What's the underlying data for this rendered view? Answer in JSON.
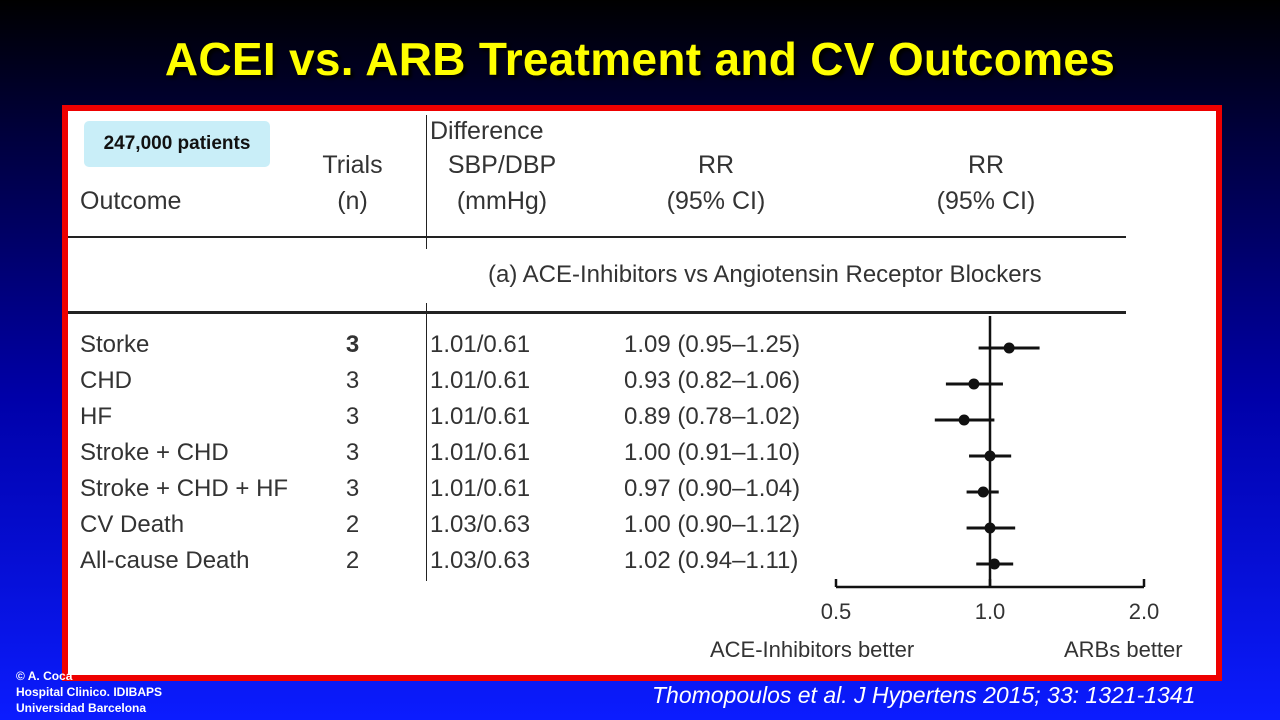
{
  "slide_title": "ACEI vs. ARB Treatment and CV Outcomes",
  "badge": "247,000 patients",
  "headers": {
    "outcome": "Outcome",
    "trials_line1": "Trials",
    "trials_line2": "(n)",
    "diff_line1": "Difference",
    "diff_line2": "SBP/DBP",
    "diff_line3": "(mmHg)",
    "rr_line1": "RR",
    "rr_line2": "(95% CI)",
    "rr2_line1": "RR",
    "rr2_line2": "(95% CI)"
  },
  "subheading": "(a) ACE-Inhibitors vs Angiotensin Receptor Blockers",
  "rows": [
    {
      "outcome": "Storke",
      "trials": "3",
      "diff": "1.01/0.61",
      "rr_text": "1.09 (0.95–1.25)"
    },
    {
      "outcome": "CHD",
      "trials": "3",
      "diff": "1.01/0.61",
      "rr_text": "0.93 (0.82–1.06)"
    },
    {
      "outcome": "HF",
      "trials": "3",
      "diff": "1.01/0.61",
      "rr_text": "0.89 (0.78–1.02)"
    },
    {
      "outcome": "Stroke + CHD",
      "trials": "3",
      "diff": "1.01/0.61",
      "rr_text": "1.00 (0.91–1.10)"
    },
    {
      "outcome": "Stroke + CHD + HF",
      "trials": "3",
      "diff": "1.01/0.61",
      "rr_text": "0.97 (0.90–1.04)"
    },
    {
      "outcome": "CV Death",
      "trials": "2",
      "diff": "1.03/0.63",
      "rr_text": "1.00 (0.90–1.12)"
    },
    {
      "outcome": "All-cause Death",
      "trials": "2",
      "diff": "1.03/0.63",
      "rr_text": "1.02 (0.94–1.11)"
    }
  ],
  "footer": {
    "left_label": "ACE-Inhibitors better",
    "right_label": "ARBs better"
  },
  "credit": {
    "line1": "© A. Coca",
    "line2": "Hospital Clinico. IDIBAPS",
    "line3": "Universidad Barcelona"
  },
  "citation": "Thomopoulos et al. J Hypertens 2015; 33: 1321-1341",
  "colors": {
    "title": "#ffff00",
    "frame": "#ee0000",
    "badge": "#c9eef8",
    "marker": "#111111"
  },
  "chart_data": {
    "type": "forest",
    "scale": "log",
    "reference_line": 1.0,
    "x_ticks": [
      0.5,
      1.0,
      2.0
    ],
    "x_tick_labels": [
      "0.5",
      "1.0",
      "2.0"
    ],
    "xlim": [
      0.5,
      2.0
    ],
    "categories": [
      "Storke",
      "CHD",
      "HF",
      "Stroke + CHD",
      "Stroke + CHD + HF",
      "CV Death",
      "All-cause Death"
    ],
    "rr": [
      1.09,
      0.93,
      0.89,
      1.0,
      0.97,
      1.0,
      1.02
    ],
    "ci_low": [
      0.95,
      0.82,
      0.78,
      0.91,
      0.9,
      0.9,
      0.94
    ],
    "ci_high": [
      1.25,
      1.06,
      1.02,
      1.1,
      1.04,
      1.12,
      1.11
    ]
  }
}
